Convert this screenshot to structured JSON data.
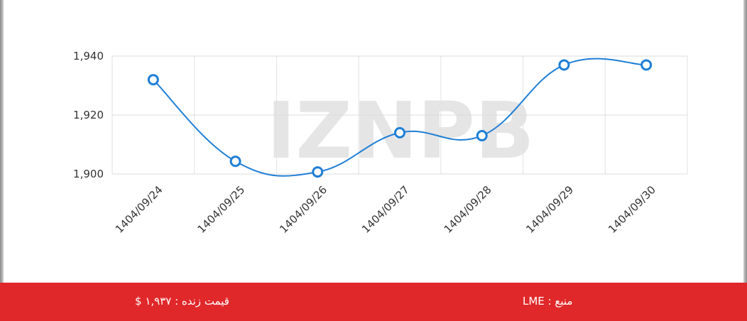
{
  "watermark": "IZNPB",
  "chart_data": {
    "type": "line",
    "categories": [
      "1404/09/24",
      "1404/09/25",
      "1404/09/26",
      "1404/09/27",
      "1404/09/28",
      "1404/09/29",
      "1404/09/30"
    ],
    "values": [
      1932,
      1904.3,
      1900.7,
      1914,
      1913,
      1937,
      1937
    ],
    "color": "#1f7fd6",
    "ylim": [
      1900,
      1940
    ],
    "yticks": [
      {
        "value": 1900,
        "label": "1,900"
      },
      {
        "value": 1920,
        "label": "1,920"
      },
      {
        "value": 1940,
        "label": "1,940"
      }
    ],
    "grid": true
  },
  "footer": {
    "price": "قیمت زنده : ۱,۹۳۷ $",
    "source": "منبع : LME"
  }
}
